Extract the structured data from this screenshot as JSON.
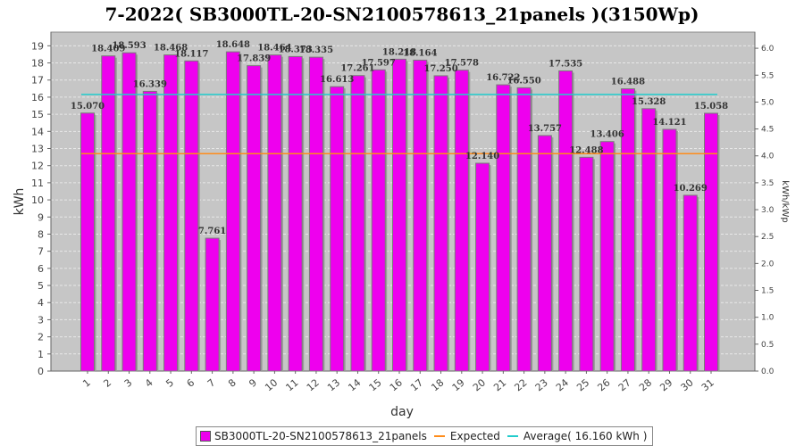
{
  "chart_data": {
    "type": "bar",
    "title": "7-2022( SB3000TL-20-SN2100578613_21panels )(3150Wp)",
    "xlabel": "day",
    "ylabel": "kWh",
    "y2label": "kWh/kWp",
    "ylim": [
      0,
      19.8
    ],
    "y2lim": [
      0,
      6.3
    ],
    "yticks": [
      0,
      1,
      2,
      3,
      4,
      5,
      6,
      7,
      8,
      9,
      10,
      11,
      12,
      13,
      14,
      15,
      16,
      17,
      18,
      19
    ],
    "y2ticks": [
      "0.0",
      "0.5",
      "1.0",
      "1.5",
      "2.0",
      "2.5",
      "3.0",
      "3.5",
      "4.0",
      "4.5",
      "5.0",
      "5.5",
      "6.0"
    ],
    "categories": [
      "1",
      "2",
      "3",
      "4",
      "5",
      "6",
      "7",
      "8",
      "9",
      "10",
      "11",
      "12",
      "13",
      "14",
      "15",
      "16",
      "17",
      "18",
      "19",
      "20",
      "21",
      "22",
      "23",
      "24",
      "25",
      "26",
      "27",
      "28",
      "29",
      "30",
      "31"
    ],
    "series": [
      {
        "name": "SB3000TL-20-SN2100578613_21panels",
        "type": "bar",
        "color": "#ee00ee",
        "values": [
          15.07,
          18.409,
          18.593,
          16.339,
          18.468,
          18.117,
          7.761,
          18.648,
          17.839,
          18.464,
          18.373,
          18.335,
          16.613,
          17.261,
          17.597,
          18.218,
          18.164,
          17.25,
          17.578,
          12.14,
          16.722,
          16.55,
          13.757,
          17.535,
          12.488,
          13.406,
          16.488,
          15.328,
          14.121,
          10.269,
          15.058
        ],
        "labels": [
          "15.070",
          "18.409",
          "18.593",
          "16.339",
          "18.468",
          "18.117",
          "7.761",
          "18.648",
          "17.839",
          "18.464",
          "18.373",
          "18.335",
          "16.613",
          "17.261",
          "17.597",
          "18.218",
          "18.164",
          "17.250",
          "17.578",
          "12.140",
          "16.722",
          "16.550",
          "13.757",
          "17.535",
          "12.488",
          "13.406",
          "16.488",
          "15.328",
          "14.121",
          "10.269",
          "15.058"
        ]
      },
      {
        "name": "Expected",
        "type": "line",
        "color": "#ff8c1a",
        "value": 12.7
      },
      {
        "name": "Average( 16.160 kWh )",
        "type": "line",
        "color": "#22cccc",
        "value": 16.16
      }
    ],
    "grid": true,
    "legend": "bottom"
  }
}
